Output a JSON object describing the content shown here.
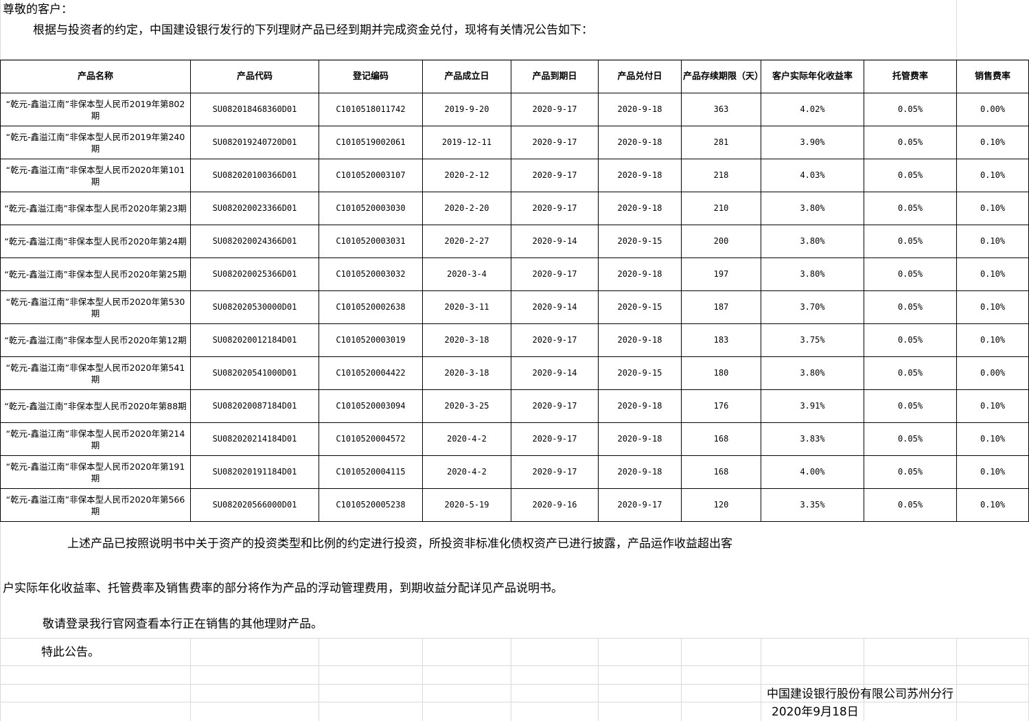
{
  "greeting": "尊敬的客户：",
  "intro": "根据与投资者的约定，中国建设银行发行的下列理财产品已经到期并完成资金兑付，现将有关情况公告如下：",
  "table": {
    "headers": [
      "产品名称",
      "产品代码",
      "登记编码",
      "产品成立日",
      "产品到期日",
      "产品兑付日",
      "产品存续期限（天）",
      "客户实际年化收益率",
      "托管费率",
      "销售费率"
    ],
    "rows": [
      [
        "“乾元-鑫溢江南”非保本型人民币2019年第802期",
        "SU082018468360D01",
        "C1010518011742",
        "2019-9-20",
        "2020-9-17",
        "2020-9-18",
        "363",
        "4.02%",
        "0.05%",
        "0.00%"
      ],
      [
        "“乾元-鑫溢江南”非保本型人民币2019年第240期",
        "SU082019240720D01",
        "C1010519002061",
        "2019-12-11",
        "2020-9-17",
        "2020-9-18",
        "281",
        "3.90%",
        "0.05%",
        "0.10%"
      ],
      [
        "“乾元-鑫溢江南”非保本型人民币2020年第101期",
        "SU082020100366D01",
        "C1010520003107",
        "2020-2-12",
        "2020-9-17",
        "2020-9-18",
        "218",
        "4.03%",
        "0.05%",
        "0.10%"
      ],
      [
        "“乾元-鑫溢江南”非保本型人民币2020年第23期",
        "SU082020023366D01",
        "C1010520003030",
        "2020-2-20",
        "2020-9-17",
        "2020-9-18",
        "210",
        "3.80%",
        "0.05%",
        "0.10%"
      ],
      [
        "“乾元-鑫溢江南”非保本型人民币2020年第24期",
        "SU082020024366D01",
        "C1010520003031",
        "2020-2-27",
        "2020-9-14",
        "2020-9-15",
        "200",
        "3.80%",
        "0.05%",
        "0.10%"
      ],
      [
        "“乾元-鑫溢江南”非保本型人民币2020年第25期",
        "SU082020025366D01",
        "C1010520003032",
        "2020-3-4",
        "2020-9-17",
        "2020-9-18",
        "197",
        "3.80%",
        "0.05%",
        "0.10%"
      ],
      [
        "“乾元-鑫溢江南”非保本型人民币2020年第530期",
        "SU082020530000D01",
        "C1010520002638",
        "2020-3-11",
        "2020-9-14",
        "2020-9-15",
        "187",
        "3.70%",
        "0.05%",
        "0.10%"
      ],
      [
        "“乾元-鑫溢江南”非保本型人民币2020年第12期",
        "SU082020012184D01",
        "C1010520003019",
        "2020-3-18",
        "2020-9-17",
        "2020-9-18",
        "183",
        "3.75%",
        "0.05%",
        "0.10%"
      ],
      [
        "“乾元-鑫溢江南”非保本型人民币2020年第541期",
        "SU082020541000D01",
        "C1010520004422",
        "2020-3-18",
        "2020-9-14",
        "2020-9-15",
        "180",
        "3.80%",
        "0.05%",
        "0.00%"
      ],
      [
        "“乾元-鑫溢江南”非保本型人民币2020年第88期",
        "SU082020087184D01",
        "C1010520003094",
        "2020-3-25",
        "2020-9-17",
        "2020-9-18",
        "176",
        "3.91%",
        "0.05%",
        "0.10%"
      ],
      [
        "“乾元-鑫溢江南”非保本型人民币2020年第214期",
        "SU082020214184D01",
        "C1010520004572",
        "2020-4-2",
        "2020-9-17",
        "2020-9-18",
        "168",
        "3.83%",
        "0.05%",
        "0.10%"
      ],
      [
        "“乾元-鑫溢江南”非保本型人民币2020年第191期",
        "SU082020191184D01",
        "C1010520004115",
        "2020-4-2",
        "2020-9-17",
        "2020-9-18",
        "168",
        "4.00%",
        "0.05%",
        "0.10%"
      ],
      [
        "“乾元-鑫溢江南”非保本型人民币2020年第566期",
        "SU082020566000D01",
        "C1010520005238",
        "2020-5-19",
        "2020-9-16",
        "2020-9-17",
        "120",
        "3.35%",
        "0.05%",
        "0.10%"
      ]
    ]
  },
  "note_line1": "上述产品已按照说明书中关于资产的投资类型和比例的约定进行投资，所投资非标准化债权资产已进行披露，产品运作收益超出客",
  "note_line2": "户实际年化收益率、托管费率及销售费率的部分将作为产品的浮动管理费用，到期收益分配详见产品说明书。",
  "invite": "敬请登录我行官网查看本行正在销售的其他理财产品。",
  "closing": "特此公告。",
  "signature": "中国建设银行股份有限公司苏州分行",
  "date": "2020年9月18日"
}
